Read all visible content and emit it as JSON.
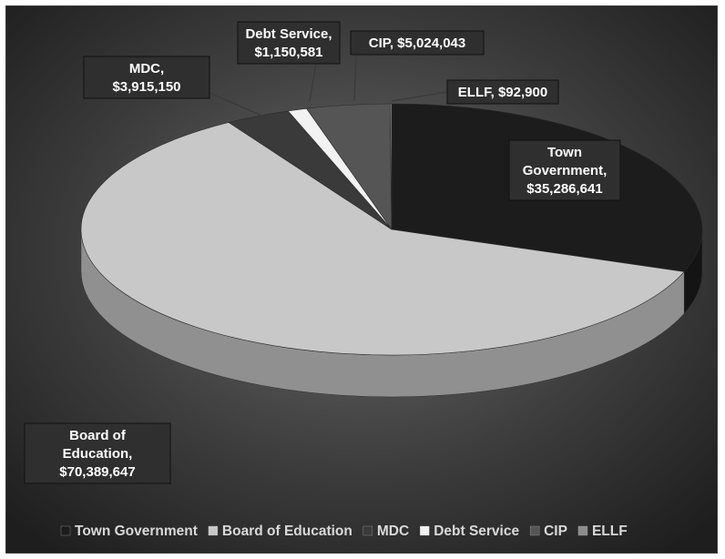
{
  "chart_data": {
    "type": "pie",
    "title": "",
    "series": [
      {
        "name": "",
        "categories": [
          "Town Government",
          "Board of Education",
          "MDC",
          "Debt Service",
          "CIP",
          "ELLF"
        ],
        "values": [
          35286641,
          70389647,
          3915150,
          1150581,
          5024043,
          92900
        ]
      }
    ],
    "data_labels": [
      [
        "Town",
        "Government,",
        "$35,286,641"
      ],
      [
        "Board of",
        "Education,",
        "$70,389,647"
      ],
      [
        "MDC,",
        "$3,915,150"
      ],
      [
        "Debt Service,",
        "$1,150,581"
      ],
      [
        "CIP,  $5,024,043"
      ],
      [
        "ELLF,  $92,900"
      ]
    ],
    "legend": {
      "placement": "bottom",
      "entries": [
        "Town Government",
        "Board of Education",
        "MDC",
        "Debt Service",
        "CIP",
        "ELLF"
      ]
    },
    "colors": {
      "Town Government": "#1c1c1c",
      "Board of Education": "#c8c8c8",
      "MDC": "#3a3a3a",
      "Debt Service": "#f2f2f2",
      "CIP": "#555555",
      "ELLF": "#8c8c8c"
    },
    "background": "#2e2e2e"
  }
}
